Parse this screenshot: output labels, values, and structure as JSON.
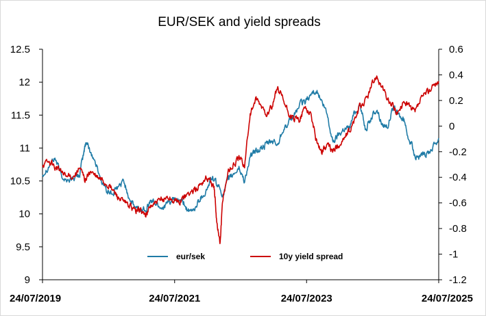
{
  "chart_data": {
    "type": "line",
    "title": "EUR/SEK and yield spreads",
    "xlabel": "",
    "ylabel": "",
    "x_tick_labels": [
      "24/07/2019",
      "24/07/2021",
      "24/07/2023",
      "24/07/2025"
    ],
    "x_range": [
      "24/07/2019",
      "24/07/2025"
    ],
    "y_left": {
      "range": [
        9,
        12.5
      ],
      "ticks": [
        "12.5",
        "12",
        "11.5",
        "11",
        "10.5",
        "10",
        "9.5",
        "9"
      ]
    },
    "y_right": {
      "range": [
        -1.2,
        0.6
      ],
      "ticks": [
        "0.6",
        "0.4",
        "0.2",
        "0",
        "-0.2",
        "-0.4",
        "-0.6",
        "-0.8",
        "-1",
        "-1.2"
      ]
    },
    "legend_position": "bottom-center",
    "grid": false,
    "series": [
      {
        "name": "eur/sek",
        "axis": "left",
        "color": "#1f7ba6",
        "points": [
          [
            "2019-07-24",
            10.6
          ],
          [
            "2019-09-01",
            10.75
          ],
          [
            "2019-10-01",
            10.85
          ],
          [
            "2019-11-01",
            10.62
          ],
          [
            "2019-12-01",
            10.5
          ],
          [
            "2020-01-15",
            10.55
          ],
          [
            "2020-02-15",
            10.6
          ],
          [
            "2020-03-10",
            10.95
          ],
          [
            "2020-03-20",
            11.1
          ],
          [
            "2020-04-15",
            10.95
          ],
          [
            "2020-05-15",
            10.75
          ],
          [
            "2020-06-15",
            10.5
          ],
          [
            "2020-07-15",
            10.35
          ],
          [
            "2020-08-15",
            10.3
          ],
          [
            "2020-09-15",
            10.4
          ],
          [
            "2020-10-15",
            10.5
          ],
          [
            "2020-11-15",
            10.25
          ],
          [
            "2020-12-15",
            10.1
          ],
          [
            "2021-01-15",
            10.05
          ],
          [
            "2021-02-15",
            10.1
          ],
          [
            "2021-03-15",
            10.2
          ],
          [
            "2021-04-15",
            10.15
          ],
          [
            "2021-05-15",
            10.1
          ],
          [
            "2021-06-15",
            10.15
          ],
          [
            "2021-07-15",
            10.2
          ],
          [
            "2021-08-15",
            10.2
          ],
          [
            "2021-09-15",
            10.15
          ],
          [
            "2021-10-15",
            10.0
          ],
          [
            "2021-11-15",
            10.1
          ],
          [
            "2021-12-15",
            10.25
          ],
          [
            "2022-01-15",
            10.35
          ],
          [
            "2022-02-15",
            10.55
          ],
          [
            "2022-03-15",
            10.45
          ],
          [
            "2022-04-15",
            10.3
          ],
          [
            "2022-05-15",
            10.5
          ],
          [
            "2022-06-15",
            10.6
          ],
          [
            "2022-07-15",
            10.7
          ],
          [
            "2022-08-15",
            10.5
          ],
          [
            "2022-09-15",
            10.85
          ],
          [
            "2022-10-15",
            10.95
          ],
          [
            "2022-11-15",
            11.0
          ],
          [
            "2022-12-15",
            11.05
          ],
          [
            "2023-01-15",
            11.1
          ],
          [
            "2023-02-15",
            11.05
          ],
          [
            "2023-03-15",
            11.3
          ],
          [
            "2023-04-15",
            11.35
          ],
          [
            "2023-05-15",
            11.5
          ],
          [
            "2023-06-15",
            11.65
          ],
          [
            "2023-07-15",
            11.7
          ],
          [
            "2023-08-15",
            11.8
          ],
          [
            "2023-09-15",
            11.9
          ],
          [
            "2023-10-15",
            11.7
          ],
          [
            "2023-11-15",
            11.5
          ],
          [
            "2023-12-15",
            11.1
          ],
          [
            "2024-01-15",
            11.2
          ],
          [
            "2024-02-15",
            11.3
          ],
          [
            "2024-03-15",
            11.3
          ],
          [
            "2024-04-15",
            11.55
          ],
          [
            "2024-05-15",
            11.65
          ],
          [
            "2024-06-15",
            11.3
          ],
          [
            "2024-07-15",
            11.45
          ],
          [
            "2024-08-15",
            11.6
          ],
          [
            "2024-09-15",
            11.35
          ],
          [
            "2024-10-15",
            11.35
          ],
          [
            "2024-11-15",
            11.6
          ],
          [
            "2024-12-15",
            11.5
          ],
          [
            "2025-01-15",
            11.4
          ],
          [
            "2025-02-15",
            11.1
          ],
          [
            "2025-03-15",
            10.9
          ],
          [
            "2025-04-15",
            10.85
          ],
          [
            "2025-05-15",
            10.9
          ],
          [
            "2025-06-15",
            11.0
          ],
          [
            "2025-07-24",
            11.15
          ]
        ]
      },
      {
        "name": "10y yield spread",
        "axis": "right",
        "color": "#cc0000",
        "points": [
          [
            "2019-07-24",
            -0.3
          ],
          [
            "2019-09-01",
            -0.28
          ],
          [
            "2019-10-01",
            -0.32
          ],
          [
            "2019-11-01",
            -0.35
          ],
          [
            "2019-12-01",
            -0.4
          ],
          [
            "2020-01-15",
            -0.38
          ],
          [
            "2020-02-15",
            -0.33
          ],
          [
            "2020-03-15",
            -0.42
          ],
          [
            "2020-04-15",
            -0.35
          ],
          [
            "2020-05-15",
            -0.4
          ],
          [
            "2020-06-15",
            -0.42
          ],
          [
            "2020-07-15",
            -0.45
          ],
          [
            "2020-08-15",
            -0.5
          ],
          [
            "2020-09-15",
            -0.55
          ],
          [
            "2020-10-15",
            -0.6
          ],
          [
            "2020-11-15",
            -0.62
          ],
          [
            "2020-12-15",
            -0.66
          ],
          [
            "2021-01-15",
            -0.65
          ],
          [
            "2021-02-15",
            -0.7
          ],
          [
            "2021-03-15",
            -0.62
          ],
          [
            "2021-04-15",
            -0.6
          ],
          [
            "2021-05-15",
            -0.58
          ],
          [
            "2021-06-15",
            -0.55
          ],
          [
            "2021-07-15",
            -0.58
          ],
          [
            "2021-08-15",
            -0.6
          ],
          [
            "2021-09-15",
            -0.55
          ],
          [
            "2021-10-15",
            -0.52
          ],
          [
            "2021-11-15",
            -0.5
          ],
          [
            "2021-12-15",
            -0.45
          ],
          [
            "2022-01-15",
            -0.4
          ],
          [
            "2022-02-15",
            -0.45
          ],
          [
            "2022-03-01",
            -0.5
          ],
          [
            "2022-03-15",
            -0.75
          ],
          [
            "2022-04-01",
            -0.92
          ],
          [
            "2022-04-15",
            -0.6
          ],
          [
            "2022-05-15",
            -0.35
          ],
          [
            "2022-06-15",
            -0.3
          ],
          [
            "2022-07-15",
            -0.25
          ],
          [
            "2022-08-15",
            -0.3
          ],
          [
            "2022-09-15",
            0.1
          ],
          [
            "2022-10-15",
            0.2
          ],
          [
            "2022-11-15",
            0.15
          ],
          [
            "2022-12-15",
            0.1
          ],
          [
            "2023-01-15",
            0.15
          ],
          [
            "2023-02-15",
            0.3
          ],
          [
            "2023-03-15",
            0.2
          ],
          [
            "2023-04-15",
            0.1
          ],
          [
            "2023-05-15",
            0.05
          ],
          [
            "2023-06-15",
            0.05
          ],
          [
            "2023-07-15",
            0.15
          ],
          [
            "2023-08-15",
            0.1
          ],
          [
            "2023-09-15",
            -0.1
          ],
          [
            "2023-10-15",
            -0.2
          ],
          [
            "2023-11-15",
            -0.15
          ],
          [
            "2023-12-15",
            -0.2
          ],
          [
            "2024-01-15",
            -0.15
          ],
          [
            "2024-02-15",
            -0.1
          ],
          [
            "2024-03-15",
            -0.05
          ],
          [
            "2024-04-15",
            0.05
          ],
          [
            "2024-05-15",
            0.15
          ],
          [
            "2024-06-15",
            0.2
          ],
          [
            "2024-07-15",
            0.3
          ],
          [
            "2024-08-15",
            0.4
          ],
          [
            "2024-09-15",
            0.3
          ],
          [
            "2024-10-15",
            0.2
          ],
          [
            "2024-11-15",
            0.15
          ],
          [
            "2024-12-15",
            0.1
          ],
          [
            "2025-01-15",
            0.2
          ],
          [
            "2025-02-15",
            0.15
          ],
          [
            "2025-03-15",
            0.1
          ],
          [
            "2025-04-15",
            0.2
          ],
          [
            "2025-05-15",
            0.25
          ],
          [
            "2025-06-15",
            0.3
          ],
          [
            "2025-07-24",
            0.35
          ]
        ]
      }
    ]
  }
}
